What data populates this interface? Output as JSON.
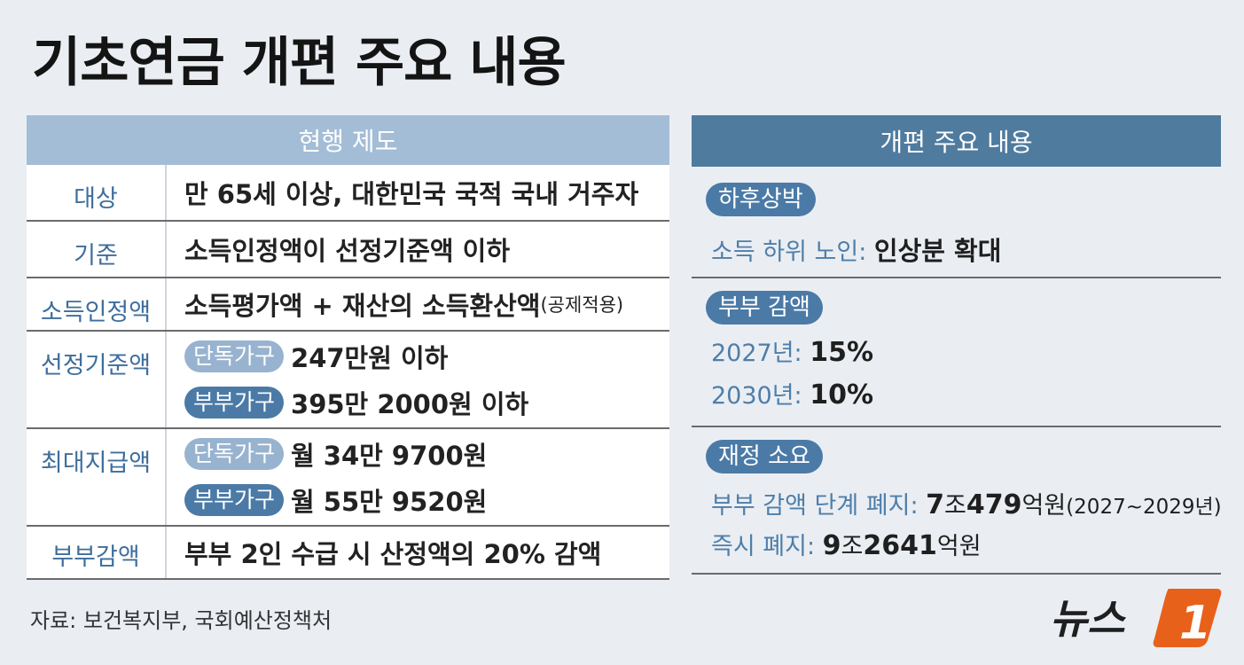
{
  "title": "기초연금 개편 주요 내용",
  "current": {
    "header": "현행 제도",
    "rows": {
      "target": {
        "label": "대상",
        "value": "만 65세 이상, 대한민국 국적 국내 거주자"
      },
      "criteria": {
        "label": "기준",
        "value": "소득인정액이 선정기준액 이하"
      },
      "income": {
        "label": "소득인정액",
        "value": "소득평가액 + 재산의 소득환산액",
        "note": "(공제적용)"
      },
      "threshold": {
        "label": "선정기준액",
        "single_tag": "단독가구",
        "single_value": "247만원 이하",
        "couple_tag": "부부가구",
        "couple_value": "395만 2000원 이하"
      },
      "max_pay": {
        "label": "최대지급액",
        "single_tag": "단독가구",
        "single_value": "월 34만 9700원",
        "couple_tag": "부부가구",
        "couple_value": "월 55만 9520원"
      },
      "couple_cut": {
        "label": "부부감액",
        "value": "부부 2인 수급 시 산정액의 20% 감액"
      }
    }
  },
  "reform": {
    "header": "개편 주요 내용",
    "sec1": {
      "tag": "하후상박",
      "line_label": "소득 하위 노인:",
      "line_value": "인상분 확대"
    },
    "sec2": {
      "tag": "부부 감액",
      "y1_label": "2027년:",
      "y1_value": "15%",
      "y2_label": "2030년:",
      "y2_value": "10%"
    },
    "sec3": {
      "tag": "재정 소요",
      "l1_label": "부부 감액 단계 폐지:",
      "l1_num1": "7",
      "l1_unit1": "조",
      "l1_num2": "479",
      "l1_unit2": "억원",
      "l1_note": "(2027~2029년)",
      "l2_label": "즉시 폐지:",
      "l2_num1": "9",
      "l2_unit1": "조",
      "l2_num2": "2641",
      "l2_unit2": "억원"
    }
  },
  "source": "자료: 보건복지부, 국회예산정책처",
  "logo": {
    "text": "뉴스",
    "mark": "1",
    "mark_color": "#e8611a"
  }
}
